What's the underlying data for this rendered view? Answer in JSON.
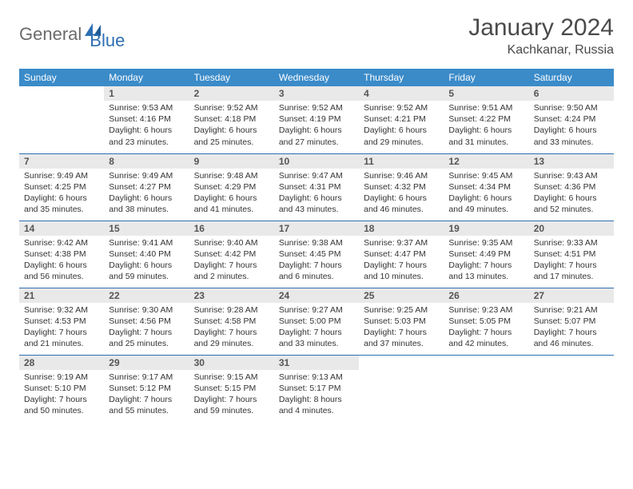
{
  "brand": {
    "name1": "General",
    "name2": "Blue"
  },
  "title": "January 2024",
  "location": "Kachkanar, Russia",
  "colors": {
    "header_bg": "#3b8bc9",
    "header_text": "#ffffff",
    "daynum_bg": "#e9e9e9",
    "row_border": "#2f6fb3",
    "logo_gray": "#6a6a6a",
    "logo_blue": "#2f6fb3"
  },
  "weekdays": [
    "Sunday",
    "Monday",
    "Tuesday",
    "Wednesday",
    "Thursday",
    "Friday",
    "Saturday"
  ],
  "calendar": {
    "type": "table",
    "columns": 7,
    "rows": 5,
    "start_offset": 1,
    "days": [
      {
        "n": "1",
        "sunrise": "9:53 AM",
        "sunset": "4:16 PM",
        "daylight": "6 hours and 23 minutes."
      },
      {
        "n": "2",
        "sunrise": "9:52 AM",
        "sunset": "4:18 PM",
        "daylight": "6 hours and 25 minutes."
      },
      {
        "n": "3",
        "sunrise": "9:52 AM",
        "sunset": "4:19 PM",
        "daylight": "6 hours and 27 minutes."
      },
      {
        "n": "4",
        "sunrise": "9:52 AM",
        "sunset": "4:21 PM",
        "daylight": "6 hours and 29 minutes."
      },
      {
        "n": "5",
        "sunrise": "9:51 AM",
        "sunset": "4:22 PM",
        "daylight": "6 hours and 31 minutes."
      },
      {
        "n": "6",
        "sunrise": "9:50 AM",
        "sunset": "4:24 PM",
        "daylight": "6 hours and 33 minutes."
      },
      {
        "n": "7",
        "sunrise": "9:49 AM",
        "sunset": "4:25 PM",
        "daylight": "6 hours and 35 minutes."
      },
      {
        "n": "8",
        "sunrise": "9:49 AM",
        "sunset": "4:27 PM",
        "daylight": "6 hours and 38 minutes."
      },
      {
        "n": "9",
        "sunrise": "9:48 AM",
        "sunset": "4:29 PM",
        "daylight": "6 hours and 41 minutes."
      },
      {
        "n": "10",
        "sunrise": "9:47 AM",
        "sunset": "4:31 PM",
        "daylight": "6 hours and 43 minutes."
      },
      {
        "n": "11",
        "sunrise": "9:46 AM",
        "sunset": "4:32 PM",
        "daylight": "6 hours and 46 minutes."
      },
      {
        "n": "12",
        "sunrise": "9:45 AM",
        "sunset": "4:34 PM",
        "daylight": "6 hours and 49 minutes."
      },
      {
        "n": "13",
        "sunrise": "9:43 AM",
        "sunset": "4:36 PM",
        "daylight": "6 hours and 52 minutes."
      },
      {
        "n": "14",
        "sunrise": "9:42 AM",
        "sunset": "4:38 PM",
        "daylight": "6 hours and 56 minutes."
      },
      {
        "n": "15",
        "sunrise": "9:41 AM",
        "sunset": "4:40 PM",
        "daylight": "6 hours and 59 minutes."
      },
      {
        "n": "16",
        "sunrise": "9:40 AM",
        "sunset": "4:42 PM",
        "daylight": "7 hours and 2 minutes."
      },
      {
        "n": "17",
        "sunrise": "9:38 AM",
        "sunset": "4:45 PM",
        "daylight": "7 hours and 6 minutes."
      },
      {
        "n": "18",
        "sunrise": "9:37 AM",
        "sunset": "4:47 PM",
        "daylight": "7 hours and 10 minutes."
      },
      {
        "n": "19",
        "sunrise": "9:35 AM",
        "sunset": "4:49 PM",
        "daylight": "7 hours and 13 minutes."
      },
      {
        "n": "20",
        "sunrise": "9:33 AM",
        "sunset": "4:51 PM",
        "daylight": "7 hours and 17 minutes."
      },
      {
        "n": "21",
        "sunrise": "9:32 AM",
        "sunset": "4:53 PM",
        "daylight": "7 hours and 21 minutes."
      },
      {
        "n": "22",
        "sunrise": "9:30 AM",
        "sunset": "4:56 PM",
        "daylight": "7 hours and 25 minutes."
      },
      {
        "n": "23",
        "sunrise": "9:28 AM",
        "sunset": "4:58 PM",
        "daylight": "7 hours and 29 minutes."
      },
      {
        "n": "24",
        "sunrise": "9:27 AM",
        "sunset": "5:00 PM",
        "daylight": "7 hours and 33 minutes."
      },
      {
        "n": "25",
        "sunrise": "9:25 AM",
        "sunset": "5:03 PM",
        "daylight": "7 hours and 37 minutes."
      },
      {
        "n": "26",
        "sunrise": "9:23 AM",
        "sunset": "5:05 PM",
        "daylight": "7 hours and 42 minutes."
      },
      {
        "n": "27",
        "sunrise": "9:21 AM",
        "sunset": "5:07 PM",
        "daylight": "7 hours and 46 minutes."
      },
      {
        "n": "28",
        "sunrise": "9:19 AM",
        "sunset": "5:10 PM",
        "daylight": "7 hours and 50 minutes."
      },
      {
        "n": "29",
        "sunrise": "9:17 AM",
        "sunset": "5:12 PM",
        "daylight": "7 hours and 55 minutes."
      },
      {
        "n": "30",
        "sunrise": "9:15 AM",
        "sunset": "5:15 PM",
        "daylight": "7 hours and 59 minutes."
      },
      {
        "n": "31",
        "sunrise": "9:13 AM",
        "sunset": "5:17 PM",
        "daylight": "8 hours and 4 minutes."
      }
    ]
  },
  "labels": {
    "sunrise": "Sunrise: ",
    "sunset": "Sunset: ",
    "daylight": "Daylight: "
  }
}
